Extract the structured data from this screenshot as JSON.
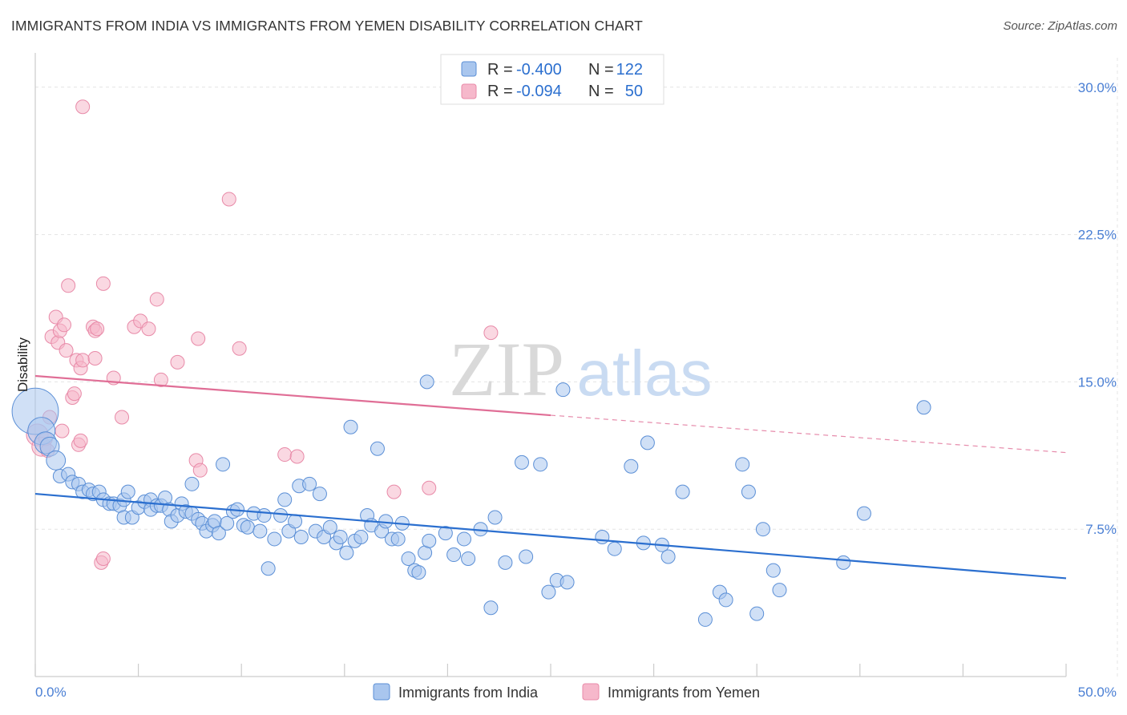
{
  "title": "IMMIGRANTS FROM INDIA VS IMMIGRANTS FROM YEMEN DISABILITY CORRELATION CHART",
  "source": "Source: ZipAtlas.com",
  "watermark": {
    "zip": "ZIP",
    "atlas": "atlas"
  },
  "colors": {
    "india_fill": "#a9c6ee",
    "india_stroke": "#5b8fd6",
    "india_line": "#2b6fcf",
    "yemen_fill": "#f6b8cb",
    "yemen_stroke": "#e88aa8",
    "yemen_line": "#e06e96",
    "axis_text": "#4a7fd4",
    "grid": "#e4e4e4"
  },
  "legend": {
    "india": {
      "r_label": "R =",
      "r_value": "-0.400",
      "n_label": "N =",
      "n_value": "122"
    },
    "yemen": {
      "r_label": "R =",
      "r_value": "-0.094",
      "n_label": "N =",
      "n_value": "50"
    }
  },
  "chart_data": {
    "type": "scatter",
    "title": "IMMIGRANTS FROM INDIA VS IMMIGRANTS FROM YEMEN DISABILITY CORRELATION CHART",
    "xlabel": "",
    "ylabel": "Disability",
    "xlim": [
      0,
      50
    ],
    "ylim": [
      0,
      31.5
    ],
    "x_tick_labels": [
      "0.0%",
      "50.0%"
    ],
    "y_ticks": [
      {
        "value": 7.5,
        "label": "7.5%"
      },
      {
        "value": 15.0,
        "label": "15.0%"
      },
      {
        "value": 22.5,
        "label": "22.5%"
      },
      {
        "value": 30.0,
        "label": "30.0%"
      }
    ],
    "grid": true,
    "legend_position": "top-center",
    "series": [
      {
        "name": "Immigrants from India",
        "r": -0.4,
        "n": 122,
        "trend": {
          "x": [
            0,
            50
          ],
          "y": [
            9.3,
            5.0
          ]
        },
        "points": [
          [
            0.0,
            13.5,
            3.4
          ],
          [
            0.3,
            12.5,
            2.0
          ],
          [
            0.5,
            11.9,
            1.6
          ],
          [
            0.7,
            11.7,
            1.4
          ],
          [
            1.0,
            11.0,
            1.4
          ],
          [
            1.2,
            10.2,
            1.0
          ],
          [
            1.6,
            10.3,
            1.0
          ],
          [
            1.8,
            9.9,
            1.0
          ],
          [
            2.1,
            9.8,
            1.0
          ],
          [
            2.3,
            9.4,
            1.0
          ],
          [
            2.6,
            9.5,
            1.0
          ],
          [
            2.8,
            9.3,
            1.0
          ],
          [
            3.1,
            9.4,
            1.0
          ],
          [
            3.3,
            9.0,
            1.0
          ],
          [
            3.6,
            8.8,
            1.0
          ],
          [
            3.8,
            8.8,
            1.0
          ],
          [
            4.1,
            8.7,
            1.0
          ],
          [
            4.3,
            9.0,
            1.0
          ],
          [
            4.3,
            8.1,
            1.0
          ],
          [
            4.5,
            9.4,
            1.0
          ],
          [
            4.7,
            8.1,
            1.0
          ],
          [
            5.0,
            8.6,
            1.0
          ],
          [
            5.3,
            8.9,
            1.0
          ],
          [
            5.6,
            9.0,
            1.0
          ],
          [
            5.6,
            8.5,
            1.0
          ],
          [
            5.9,
            8.7,
            1.0
          ],
          [
            6.1,
            8.7,
            1.0
          ],
          [
            6.3,
            9.1,
            1.0
          ],
          [
            6.5,
            8.5,
            1.0
          ],
          [
            6.6,
            7.9,
            1.0
          ],
          [
            6.9,
            8.2,
            1.0
          ],
          [
            7.1,
            8.8,
            1.0
          ],
          [
            7.3,
            8.4,
            1.0
          ],
          [
            7.6,
            8.3,
            1.0
          ],
          [
            7.6,
            9.8,
            1.0
          ],
          [
            7.9,
            8.0,
            1.0
          ],
          [
            8.1,
            7.8,
            1.0
          ],
          [
            8.3,
            7.4,
            1.0
          ],
          [
            8.6,
            7.7,
            1.0
          ],
          [
            8.7,
            7.9,
            1.0
          ],
          [
            8.9,
            7.3,
            1.0
          ],
          [
            9.1,
            10.8,
            1.0
          ],
          [
            9.3,
            7.8,
            1.0
          ],
          [
            9.6,
            8.4,
            1.0
          ],
          [
            9.8,
            8.5,
            1.0
          ],
          [
            10.1,
            7.7,
            1.0
          ],
          [
            10.3,
            7.6,
            1.0
          ],
          [
            10.6,
            8.3,
            1.0
          ],
          [
            10.9,
            7.4,
            1.0
          ],
          [
            11.1,
            8.2,
            1.0
          ],
          [
            11.3,
            5.5,
            1.0
          ],
          [
            11.6,
            7.0,
            1.0
          ],
          [
            11.9,
            8.2,
            1.0
          ],
          [
            12.1,
            9.0,
            1.0
          ],
          [
            12.3,
            7.4,
            1.0
          ],
          [
            12.6,
            7.9,
            1.0
          ],
          [
            12.8,
            9.7,
            1.0
          ],
          [
            12.9,
            7.1,
            1.0
          ],
          [
            13.3,
            9.8,
            1.0
          ],
          [
            13.6,
            7.4,
            1.0
          ],
          [
            13.8,
            9.3,
            1.0
          ],
          [
            14.0,
            7.1,
            1.0
          ],
          [
            14.3,
            7.6,
            1.0
          ],
          [
            14.6,
            6.8,
            1.0
          ],
          [
            14.8,
            7.1,
            1.0
          ],
          [
            15.1,
            6.3,
            1.0
          ],
          [
            15.3,
            12.7,
            1.0
          ],
          [
            15.5,
            6.9,
            1.0
          ],
          [
            15.8,
            7.1,
            1.0
          ],
          [
            16.1,
            8.2,
            1.0
          ],
          [
            16.3,
            7.7,
            1.0
          ],
          [
            16.6,
            11.6,
            1.0
          ],
          [
            16.8,
            7.4,
            1.0
          ],
          [
            17.0,
            7.9,
            1.0
          ],
          [
            17.3,
            7.0,
            1.0
          ],
          [
            17.6,
            7.0,
            1.0
          ],
          [
            17.8,
            7.8,
            1.0
          ],
          [
            18.1,
            6.0,
            1.0
          ],
          [
            18.4,
            5.4,
            1.0
          ],
          [
            18.6,
            5.3,
            1.0
          ],
          [
            18.9,
            6.3,
            1.0
          ],
          [
            19.1,
            6.9,
            1.0
          ],
          [
            19.0,
            15.0,
            1.0
          ],
          [
            19.9,
            7.3,
            1.0
          ],
          [
            20.3,
            6.2,
            1.0
          ],
          [
            20.8,
            7.0,
            1.0
          ],
          [
            21.0,
            6.0,
            1.0
          ],
          [
            21.6,
            7.5,
            1.0
          ],
          [
            22.1,
            3.5,
            1.0
          ],
          [
            22.3,
            8.1,
            1.0
          ],
          [
            22.8,
            5.8,
            1.0
          ],
          [
            23.6,
            10.9,
            1.0
          ],
          [
            23.8,
            6.1,
            1.0
          ],
          [
            24.5,
            10.8,
            1.0
          ],
          [
            24.9,
            4.3,
            1.0
          ],
          [
            25.3,
            4.9,
            1.0
          ],
          [
            25.6,
            14.6,
            1.0
          ],
          [
            25.8,
            4.8,
            1.0
          ],
          [
            27.5,
            7.1,
            1.0
          ],
          [
            28.1,
            6.5,
            1.0
          ],
          [
            28.9,
            10.7,
            1.0
          ],
          [
            29.5,
            6.8,
            1.0
          ],
          [
            29.7,
            11.9,
            1.0
          ],
          [
            30.4,
            6.7,
            1.0
          ],
          [
            30.7,
            6.1,
            1.0
          ],
          [
            31.4,
            9.4,
            1.0
          ],
          [
            32.5,
            2.9,
            1.0
          ],
          [
            33.2,
            4.3,
            1.0
          ],
          [
            33.5,
            3.9,
            1.0
          ],
          [
            34.3,
            10.8,
            1.0
          ],
          [
            34.6,
            9.4,
            1.0
          ],
          [
            35.0,
            3.2,
            1.0
          ],
          [
            35.3,
            7.5,
            1.0
          ],
          [
            35.8,
            5.4,
            1.0
          ],
          [
            36.1,
            4.4,
            1.0
          ],
          [
            39.2,
            5.8,
            1.0
          ],
          [
            40.2,
            8.3,
            1.0
          ],
          [
            43.1,
            13.7,
            1.0
          ]
        ]
      },
      {
        "name": "Immigrants from Yemen",
        "r": -0.094,
        "n": 50,
        "trend": {
          "x": [
            0,
            25
          ],
          "y": [
            15.3,
            13.3
          ]
        },
        "trend_dashed": {
          "x": [
            25,
            50
          ],
          "y": [
            13.3,
            11.4
          ]
        },
        "points": [
          [
            0.1,
            12.3,
            1.6
          ],
          [
            0.3,
            11.7,
            1.4
          ],
          [
            0.5,
            12.1,
            1.0
          ],
          [
            0.6,
            11.5,
            1.0
          ],
          [
            0.7,
            13.2,
            1.0
          ],
          [
            0.8,
            17.3,
            1.0
          ],
          [
            1.0,
            18.3,
            1.0
          ],
          [
            1.1,
            17.0,
            1.0
          ],
          [
            1.2,
            17.6,
            1.0
          ],
          [
            1.3,
            12.5,
            1.0
          ],
          [
            1.4,
            17.9,
            1.0
          ],
          [
            1.5,
            16.6,
            1.0
          ],
          [
            1.6,
            19.9,
            1.0
          ],
          [
            1.8,
            14.2,
            1.0
          ],
          [
            1.9,
            14.4,
            1.0
          ],
          [
            2.0,
            16.1,
            1.0
          ],
          [
            2.1,
            11.8,
            1.0
          ],
          [
            2.2,
            12.0,
            1.0
          ],
          [
            2.2,
            15.7,
            1.0
          ],
          [
            2.3,
            16.1,
            1.0
          ],
          [
            2.3,
            29.0,
            1.0
          ],
          [
            2.8,
            17.8,
            1.0
          ],
          [
            2.9,
            17.6,
            1.0
          ],
          [
            2.9,
            16.2,
            1.0
          ],
          [
            3.0,
            17.7,
            1.0
          ],
          [
            3.2,
            5.8,
            1.0
          ],
          [
            3.3,
            6.0,
            1.0
          ],
          [
            3.3,
            20.0,
            1.0
          ],
          [
            3.8,
            15.2,
            1.0
          ],
          [
            4.2,
            13.2,
            1.0
          ],
          [
            4.8,
            17.8,
            1.0
          ],
          [
            5.1,
            18.1,
            1.0
          ],
          [
            5.5,
            17.7,
            1.0
          ],
          [
            5.9,
            19.2,
            1.0
          ],
          [
            6.1,
            15.1,
            1.0
          ],
          [
            6.9,
            16.0,
            1.0
          ],
          [
            7.8,
            11.0,
            1.0
          ],
          [
            7.9,
            17.2,
            1.0
          ],
          [
            8.0,
            10.5,
            1.0
          ],
          [
            9.4,
            24.3,
            1.0
          ],
          [
            9.9,
            16.7,
            1.0
          ],
          [
            12.1,
            11.3,
            1.0
          ],
          [
            12.7,
            11.2,
            1.0
          ],
          [
            17.4,
            9.4,
            1.0
          ],
          [
            19.1,
            9.6,
            1.0
          ],
          [
            22.1,
            17.5,
            1.0
          ]
        ]
      }
    ]
  },
  "bottom_legend": {
    "india": "Immigrants from India",
    "yemen": "Immigrants from Yemen"
  }
}
